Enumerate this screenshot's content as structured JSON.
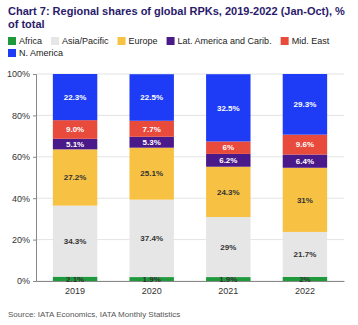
{
  "chart_data": {
    "type": "bar",
    "title": "Chart 7: Regional shares of global RPKs, 2019-2022 (Jan-Oct), % of total",
    "source": "Source: IATA Economics, IATA Monthly Statistics",
    "categories": [
      "2019",
      "2020",
      "2021",
      "2022"
    ],
    "stacked": true,
    "data_labels": true,
    "grid": true,
    "legend": "top",
    "ylim": [
      0,
      100
    ],
    "yticks": [
      {
        "value": 0,
        "label": "0%"
      },
      {
        "value": 20,
        "label": "20%"
      },
      {
        "value": 40,
        "label": "40%"
      },
      {
        "value": 60,
        "label": "60%"
      },
      {
        "value": 80,
        "label": "80%"
      },
      {
        "value": 100,
        "label": "100%"
      }
    ],
    "series": [
      {
        "name": "Africa",
        "color": "#1e9a3c",
        "values": [
          2.1,
          1.9,
          1.9,
          2
        ],
        "value_labels": [
          "2.1%",
          "1.9%",
          "1.9%",
          "2%"
        ]
      },
      {
        "name": "Asia/Pacific",
        "color": "#e6e6e6",
        "values": [
          34.3,
          37.4,
          29,
          21.7
        ],
        "value_labels": [
          "34.3%",
          "37.4%",
          "29%",
          "21.7%"
        ]
      },
      {
        "name": "Europe",
        "color": "#f7c244",
        "values": [
          27.2,
          25.1,
          24.3,
          31
        ],
        "value_labels": [
          "27.2%",
          "25.1%",
          "24.3%",
          "31%"
        ]
      },
      {
        "name": "Lat. America and Carib.",
        "color": "#4a1a8a",
        "values": [
          5.1,
          5.3,
          6.2,
          6.4
        ],
        "value_labels": [
          "5.1%",
          "5.3%",
          "6.2%",
          "6.4%"
        ]
      },
      {
        "name": "Mid. East",
        "color": "#e84a3c",
        "values": [
          9.0,
          7.7,
          6,
          9.6
        ],
        "value_labels": [
          "9.0%",
          "7.7%",
          "6%",
          "9.6%"
        ]
      },
      {
        "name": "N. America",
        "color": "#1e3cf5",
        "values": [
          22.3,
          22.5,
          32.5,
          29.3
        ],
        "value_labels": [
          "22.3%",
          "22.5%",
          "32.5%",
          "29.3%"
        ]
      }
    ]
  }
}
